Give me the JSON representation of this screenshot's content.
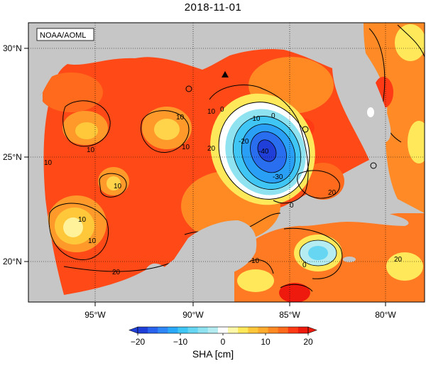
{
  "title": "2018-11-01",
  "credit": "NOAA/AOML",
  "lat_labels": [
    "30°N",
    "25°N",
    "20°N"
  ],
  "lon_labels": [
    "95°W",
    "90°W",
    "85°W",
    "80°W"
  ],
  "contour_labels": [
    "10",
    "10",
    "20",
    "10",
    "10",
    "0",
    "-10",
    "-20",
    "-30",
    "-40",
    "0",
    "10",
    "20",
    "10",
    "0",
    "0",
    "20",
    "10",
    "10",
    "10",
    "20"
  ],
  "colorbar": {
    "label": "SHA [cm]",
    "ticks": [
      "−20",
      "−10",
      "0",
      "10",
      "20"
    ],
    "colors": [
      "#1f3fd8",
      "#2a63ee",
      "#2f86f6",
      "#2aa9f8",
      "#3fc6f4",
      "#66d6f2",
      "#8fe3f1",
      "#b5ecf1",
      "#ffffff",
      "#fff8a8",
      "#ffe85a",
      "#ffc83a",
      "#ffab2e",
      "#ff8a24",
      "#ff6a1c",
      "#ff3a14",
      "#ee1a0e"
    ],
    "range": [
      -20,
      20
    ]
  },
  "marker": "triangle-marker"
}
